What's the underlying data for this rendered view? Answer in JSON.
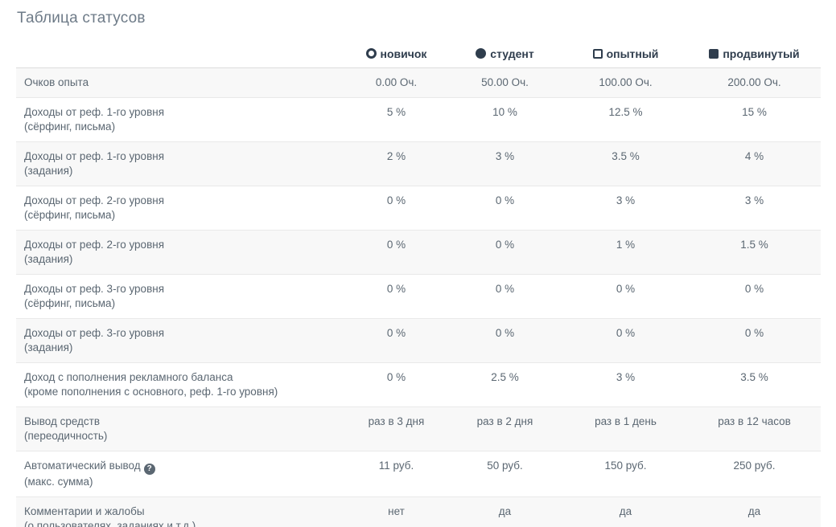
{
  "page": {
    "title": "Таблица статусов"
  },
  "icons": {
    "question_glyph": "?"
  },
  "colors": {
    "title_text": "#6e7b88",
    "header_text": "#2f3d4d",
    "cell_text": "#5b6772",
    "row_stripe": "#f8f8f8",
    "row_border": "#e9e9e9"
  },
  "table": {
    "columns": [
      {
        "icon": "circle-outline-icon",
        "label": "новичок"
      },
      {
        "icon": "circle-filled-icon",
        "label": "студент"
      },
      {
        "icon": "square-outline-icon",
        "label": "опытный"
      },
      {
        "icon": "square-filled-icon",
        "label": "продвинутый"
      }
    ],
    "rows": [
      {
        "label": "Очков опыта",
        "sublabel": "",
        "values": [
          "0.00 Оч.",
          "50.00 Оч.",
          "100.00 Оч.",
          "200.00 Оч."
        ]
      },
      {
        "label": "Доходы от реф. 1-го уровня",
        "sublabel": "(сёрфинг, письма)",
        "values": [
          "5 %",
          "10 %",
          "12.5 %",
          "15 %"
        ]
      },
      {
        "label": "Доходы от реф. 1-го уровня",
        "sublabel": "(задания)",
        "values": [
          "2 %",
          "3 %",
          "3.5 %",
          "4 %"
        ]
      },
      {
        "label": "Доходы от реф. 2-го уровня",
        "sublabel": "(сёрфинг, письма)",
        "values": [
          "0 %",
          "0 %",
          "3 %",
          "3 %"
        ]
      },
      {
        "label": "Доходы от реф. 2-го уровня",
        "sublabel": "(задания)",
        "values": [
          "0 %",
          "0 %",
          "1 %",
          "1.5 %"
        ]
      },
      {
        "label": "Доходы от реф. 3-го уровня",
        "sublabel": "(сёрфинг, письма)",
        "values": [
          "0 %",
          "0 %",
          "0 %",
          "0 %"
        ]
      },
      {
        "label": "Доходы от реф. 3-го уровня",
        "sublabel": "(задания)",
        "values": [
          "0 %",
          "0 %",
          "0 %",
          "0 %"
        ]
      },
      {
        "label": "Доход с пополнения рекламного баланса",
        "sublabel": "(кроме пополнения с основного, реф. 1-го уровня)",
        "values": [
          "0 %",
          "2.5 %",
          "3 %",
          "3.5 %"
        ]
      },
      {
        "label": "Вывод средств",
        "sublabel": "(переодичность)",
        "values": [
          "раз в 3 дня",
          "раз в 2 дня",
          "раз в 1 день",
          "раз в 12 часов"
        ]
      },
      {
        "label": "Автоматический вывод",
        "sublabel": "(макс. сумма)",
        "values": [
          "11 руб.",
          "50 руб.",
          "150 руб.",
          "250 руб."
        ]
      },
      {
        "label": "Комментарии и жалобы",
        "sublabel": "(о пользователях, заданиях и т.д.)",
        "values": [
          "нет",
          "да",
          "да",
          "да"
        ]
      }
    ]
  }
}
